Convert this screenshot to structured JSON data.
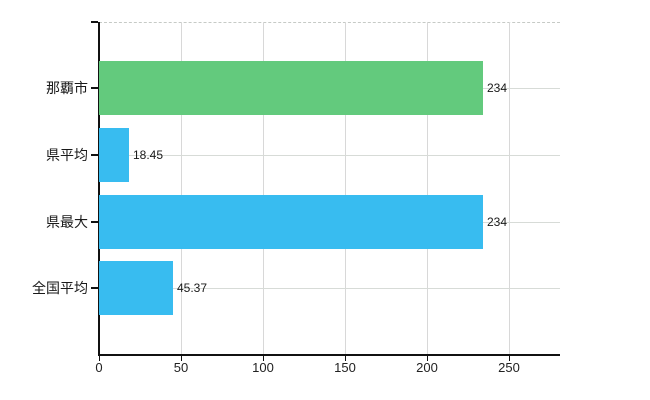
{
  "chart_data": {
    "type": "bar",
    "orientation": "horizontal",
    "title": "",
    "xlabel": "",
    "ylabel": "",
    "categories": [
      "那覇市",
      "県平均",
      "県最大",
      "全国平均"
    ],
    "values": [
      234,
      18.45,
      234,
      45.37
    ],
    "value_labels": [
      "234",
      "18.45",
      "234",
      "45.37"
    ],
    "bar_colors": [
      "#63ca7d",
      "#38bcf0",
      "#38bcf0",
      "#38bcf0"
    ],
    "x_ticks": [
      0,
      50,
      100,
      150,
      200,
      250
    ],
    "x_tick_labels": [
      "0",
      "50",
      "100",
      "150",
      "200",
      "250"
    ],
    "xlim": [
      0,
      282
    ],
    "grid": "on",
    "legend": "none",
    "colors": {
      "bar_green": "#63ca7d",
      "bar_blue": "#38bcf0",
      "gridline": "#d8d8d8",
      "category_gridline": "#d7dbd7",
      "top_border_dashed": "#c6cac6",
      "axis": "#111111",
      "text": "#1a1a1a",
      "background": "#ffffff"
    }
  }
}
